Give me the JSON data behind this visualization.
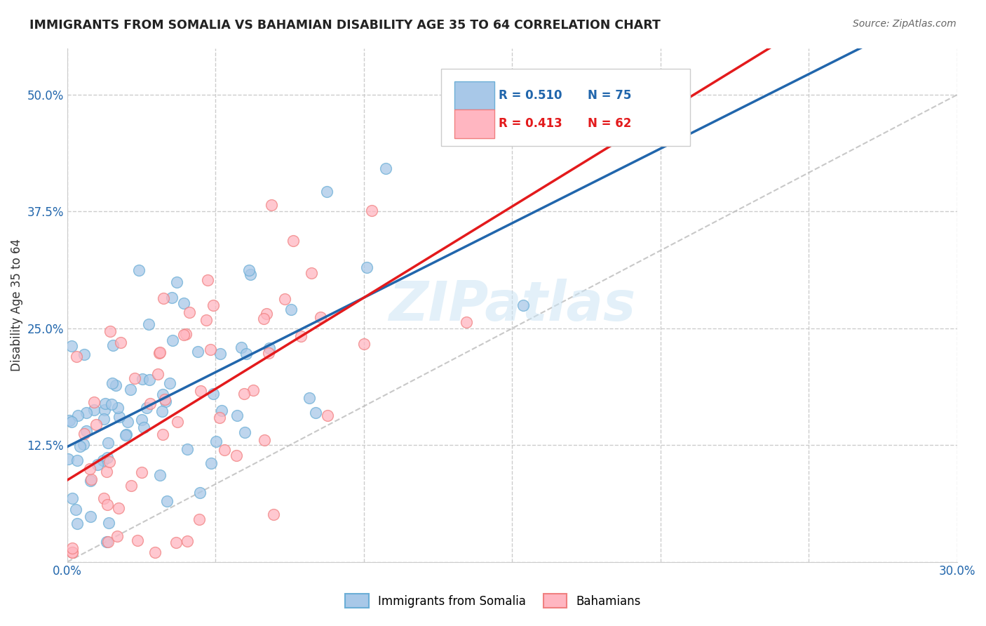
{
  "title": "IMMIGRANTS FROM SOMALIA VS BAHAMIAN DISABILITY AGE 35 TO 64 CORRELATION CHART",
  "source": "Source: ZipAtlas.com",
  "ylabel_label": "Disability Age 35 to 64",
  "xlim": [
    0.0,
    0.3
  ],
  "ylim": [
    0.0,
    0.55
  ],
  "xticks": [
    0.0,
    0.05,
    0.1,
    0.15,
    0.2,
    0.25,
    0.3
  ],
  "xticklabels": [
    "0.0%",
    "",
    "",
    "",
    "",
    "",
    "30.0%"
  ],
  "yticks": [
    0.0,
    0.125,
    0.25,
    0.375,
    0.5
  ],
  "yticklabels": [
    "",
    "12.5%",
    "25.0%",
    "37.5%",
    "50.0%"
  ],
  "legend1_r": "R = 0.510",
  "legend1_n": "N = 75",
  "legend2_r": "R = 0.413",
  "legend2_n": "N = 62",
  "color_blue_fill": "#a8c8e8",
  "color_blue_edge": "#6baed6",
  "color_pink_fill": "#ffb6c1",
  "color_pink_edge": "#f08080",
  "color_blue_line": "#2166ac",
  "color_pink_line": "#e31a1c",
  "color_diag": "#bbbbbb",
  "watermark": "ZIPatlas"
}
